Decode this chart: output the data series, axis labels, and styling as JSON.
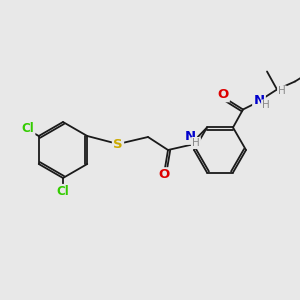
{
  "background_color": "#e8e8e8",
  "bond_color": "#1a1a1a",
  "atom_colors": {
    "Cl": "#33cc00",
    "S": "#ccaa00",
    "O": "#dd0000",
    "N": "#0000cc",
    "H": "#888888",
    "C": "#1a1a1a"
  },
  "font_size": 8.5,
  "figsize": [
    3.0,
    3.0
  ],
  "dpi": 100
}
